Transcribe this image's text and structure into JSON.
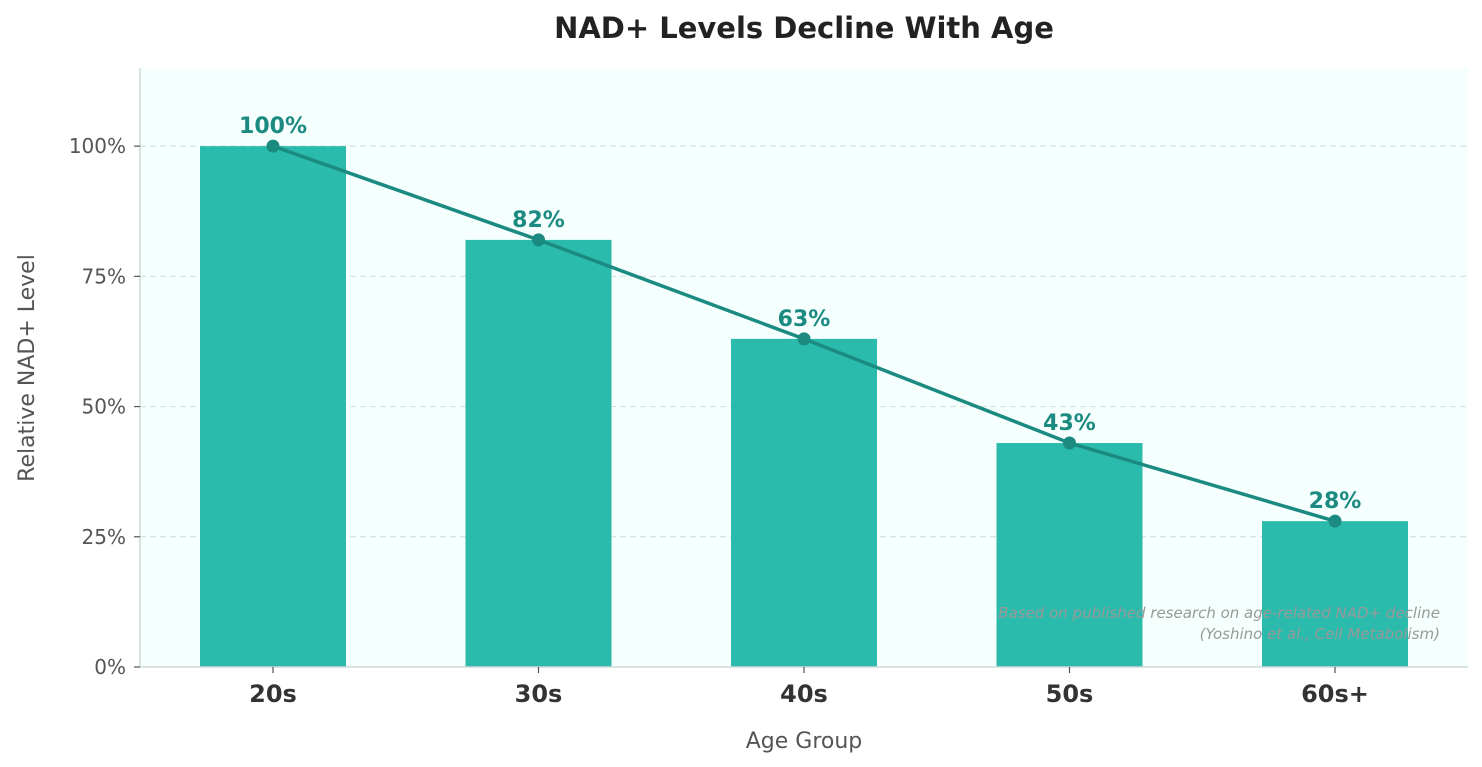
{
  "chart_data": {
    "type": "bar",
    "title": "NAD+ Levels Decline With Age",
    "xlabel": "Age Group",
    "ylabel": "Relative NAD+ Level",
    "categories": [
      "20s",
      "30s",
      "40s",
      "50s",
      "60s+"
    ],
    "values": [
      100,
      82,
      63,
      43,
      28
    ],
    "data_labels": [
      "100%",
      "82%",
      "63%",
      "43%",
      "28%"
    ],
    "ylim": [
      0,
      115
    ],
    "yticks": [
      0,
      25,
      50,
      75,
      100
    ],
    "ytick_labels": [
      "0%",
      "25%",
      "50%",
      "75%",
      "100%"
    ],
    "overlay": "line with markers through bar tops",
    "grid": "horizontal dashed",
    "annotation": [
      "Based on published research on age-related NAD+ decline",
      "(Yoshino et al., Cell Metabolism)"
    ],
    "colors": {
      "bar": "#2bbbad",
      "line": "#1b8a80",
      "plot_background": "#f5fffd",
      "grid": "#d5e0e0",
      "label": "#1b8a80"
    }
  }
}
